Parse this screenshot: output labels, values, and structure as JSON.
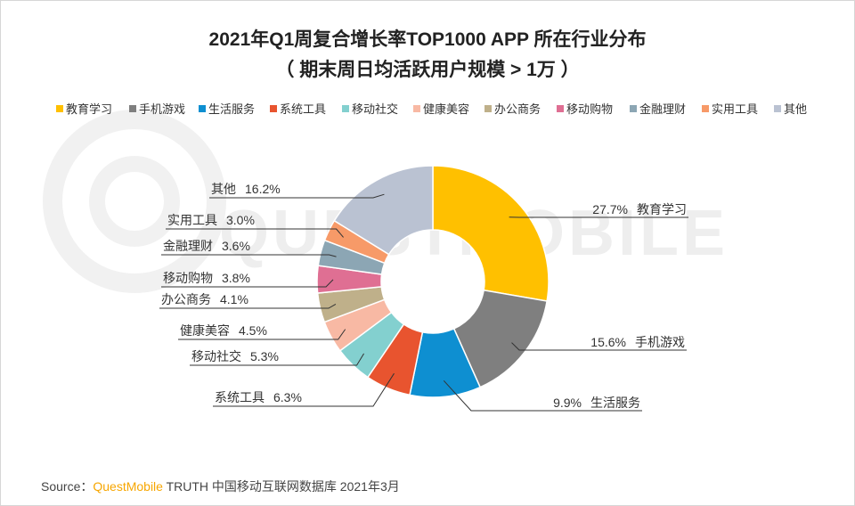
{
  "chart_data": {
    "type": "pie",
    "variant": "donut",
    "title": "2021年Q1周复合增长率TOP1000 APP 所在行业分布",
    "subtitle": "（ 期末周日均活跃用户规模 > 1万 ）",
    "legend_position": "top",
    "unit": "%",
    "categories": [
      "教育学习",
      "手机游戏",
      "生活服务",
      "系统工具",
      "移动社交",
      "健康美容",
      "办公商务",
      "移动购物",
      "金融理财",
      "实用工具",
      "其他"
    ],
    "values": [
      27.7,
      15.6,
      9.9,
      6.3,
      5.3,
      4.5,
      4.1,
      3.8,
      3.6,
      3.0,
      16.2
    ],
    "labels": [
      "27.7%",
      "15.6%",
      "9.9%",
      "6.3%",
      "5.3%",
      "4.5%",
      "4.1%",
      "3.8%",
      "3.6%",
      "3.0%",
      "16.2%"
    ],
    "colors": [
      "#ffc000",
      "#7f7f7f",
      "#0e8fd1",
      "#e8542f",
      "#83d0cf",
      "#f8b9a4",
      "#bfb08a",
      "#df6f93",
      "#8ca6b4",
      "#f79a68",
      "#bac2d2"
    ]
  },
  "source": {
    "prefix": "Source：",
    "brand": "QuestMobile",
    "rest": " TRUTH 中国移动互联网数据库 2021年3月"
  },
  "watermark": "QUESTMOBILE"
}
